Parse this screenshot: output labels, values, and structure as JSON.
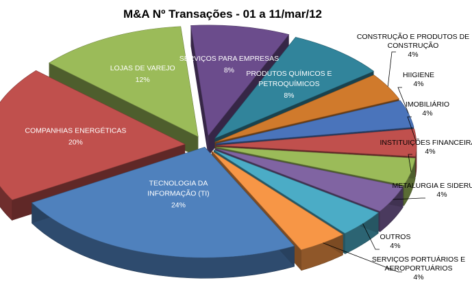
{
  "chart_data": {
    "type": "pie",
    "title": "M&A   Nº Transações - 01 a 11/mar/12",
    "slices": [
      {
        "label": "SERVIÇOS PARA EMPRESAS",
        "value": 8,
        "value_label": "8%",
        "color": "#6b4c8c"
      },
      {
        "label": "PRODUTOS QUÍMICOS E PETROQUÍMICOS",
        "value": 8,
        "value_label": "8%",
        "color": "#31849b"
      },
      {
        "label": "CONSTRUÇÃO E PRODUTOS DE CONSTRUÇÃO",
        "value": 4,
        "value_label": "4%",
        "color": "#d07a2c"
      },
      {
        "label": "HIIGIENE",
        "value": 4,
        "value_label": "4%",
        "color": "#4a74bb"
      },
      {
        "label": "IMOBILIÁRIO",
        "value": 4,
        "value_label": "4%",
        "color": "#c0504d"
      },
      {
        "label": "INSTITUIÇÕES FINANCEIRAS",
        "value": 4,
        "value_label": "4%",
        "color": "#9bbb59"
      },
      {
        "label": "METALURGIA E SIDERURGIA",
        "value": 4,
        "value_label": "4%",
        "color": "#8064a2"
      },
      {
        "label": "OUTROS",
        "value": 4,
        "value_label": "4%",
        "color": "#4bacc6"
      },
      {
        "label": "SERVIÇOS PORTUÁRIOS E AEROPORTUÁRIOS",
        "value": 4,
        "value_label": "4%",
        "color": "#f79646"
      },
      {
        "label": "TECNOLOGIA DA INFORMAÇÃO (TI)",
        "value": 24,
        "value_label": "24%",
        "color": "#4f81bd"
      },
      {
        "label": "COMPANHIAS ENERGÉTICAS",
        "value": 20,
        "value_label": "20%",
        "color": "#c0504d"
      },
      {
        "label": "LOJAS DE VAREJO",
        "value": 12,
        "value_label": "12%",
        "color": "#9bbb59"
      }
    ],
    "legend": "none",
    "style": "3d-exploded"
  }
}
